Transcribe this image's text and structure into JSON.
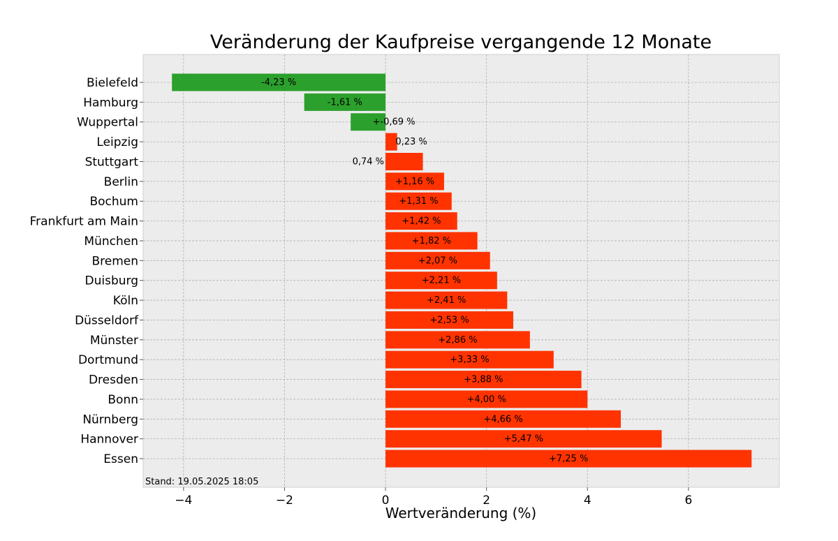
{
  "chart_data": {
    "type": "bar",
    "orientation": "horizontal",
    "title": "Veränderung der Kaufpreise vergangende 12 Monate",
    "xlabel": "Wertveränderung (%)",
    "ylabel": "",
    "xlim": [
      -4.8,
      7.8
    ],
    "xticks": [
      -4,
      -2,
      0,
      2,
      4,
      6
    ],
    "xtick_labels": [
      "−4",
      "−2",
      "0",
      "2",
      "4",
      "6"
    ],
    "grid": true,
    "note": "Stand: 19.05.2025 18:05",
    "colors": {
      "negative": "#2ca02c",
      "positive": "#ff3300",
      "background": "#ececec",
      "grid": "#b0b0b0"
    },
    "categories": [
      "Bielefeld",
      "Hamburg",
      "Wuppertal",
      "Leipzig",
      "Stuttgart",
      "Berlin",
      "Bochum",
      "Frankfurt am Main",
      "München",
      "Bremen",
      "Duisburg",
      "Köln",
      "Düsseldorf",
      "Münster",
      "Dortmund",
      "Dresden",
      "Bonn",
      "Nürnberg",
      "Hannover",
      "Essen"
    ],
    "values": [
      -4.23,
      -1.61,
      -0.69,
      0.23,
      0.74,
      1.16,
      1.31,
      1.42,
      1.82,
      2.07,
      2.21,
      2.41,
      2.53,
      2.86,
      3.33,
      3.88,
      4.0,
      4.66,
      5.47,
      7.25
    ],
    "data_labels": [
      "-4,23 %",
      "-1,61 %",
      "+-0,69 %",
      "0,23 %",
      "0,74 %",
      "+1,16 %",
      "+1,31 %",
      "+1,42 %",
      "+1,82 %",
      "+2,07 %",
      "+2,21 %",
      "+2,41 %",
      "+2,53 %",
      "+2,86 %",
      "+3,33 %",
      "+3,88 %",
      "+4,00 %",
      "+4,66 %",
      "+5,47 %",
      "+7,25 %"
    ]
  }
}
